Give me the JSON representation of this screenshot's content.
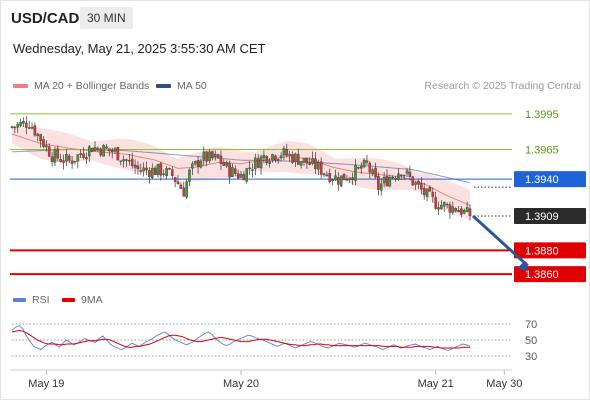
{
  "header": {
    "symbol": "USD/CAD",
    "timeframe": "30 MIN",
    "datetime": "Wednesday, May 21, 2025 3:55:30 AM CET"
  },
  "legend": {
    "ma20_label": "MA 20 + Bollinger Bands",
    "ma50_label": "MA 50",
    "credit": "Research © 2025 Trading Central"
  },
  "rsi_legend": {
    "rsi_label": "RSI",
    "ma9_label": "9MA"
  },
  "colors": {
    "up": "#3b9a3b",
    "down": "#d23a3a",
    "ma20": "#f08080",
    "bands": "#fcdcdc",
    "ma50": "#2b4f8a",
    "resistance": "#8cbf3f",
    "pivot": "#1f63d6",
    "support": "#e00000",
    "last": "#2a2a2a",
    "rsi": "#5b80d6",
    "rsi_ma": "#e00000"
  },
  "chart_data": [
    {
      "type": "candlestick",
      "title": "USD/CAD 30 MIN",
      "ylim": [
        1.385,
        1.401
      ],
      "x_tick_labels": [
        "May 19",
        "May 20",
        "May 21",
        "May 30"
      ],
      "levels": [
        {
          "label": "1.3995",
          "value": 1.3995,
          "kind": "resistance"
        },
        {
          "label": "1.3965",
          "value": 1.3965,
          "kind": "resistance"
        },
        {
          "label": "1.3940",
          "value": 1.394,
          "kind": "pivot"
        },
        {
          "label": "1.3909",
          "value": 1.3909,
          "kind": "last"
        },
        {
          "label": "1.3880",
          "value": 1.388,
          "kind": "support"
        },
        {
          "label": "1.3860",
          "value": 1.386,
          "kind": "support"
        }
      ],
      "anchors": [
        [
          0,
          1.3984
        ],
        [
          6,
          1.3988
        ],
        [
          14,
          1.396
        ],
        [
          20,
          1.3955
        ],
        [
          28,
          1.3967
        ],
        [
          36,
          1.3963
        ],
        [
          44,
          1.3948
        ],
        [
          52,
          1.3947
        ],
        [
          56,
          1.3943
        ],
        [
          60,
          1.393
        ],
        [
          62,
          1.3945
        ],
        [
          66,
          1.3958
        ],
        [
          72,
          1.3957
        ],
        [
          76,
          1.3947
        ],
        [
          80,
          1.3943
        ],
        [
          84,
          1.3952
        ],
        [
          88,
          1.3959
        ],
        [
          94,
          1.3962
        ],
        [
          100,
          1.3957
        ],
        [
          106,
          1.3951
        ],
        [
          110,
          1.3945
        ],
        [
          114,
          1.394
        ],
        [
          120,
          1.3946
        ],
        [
          124,
          1.3952
        ],
        [
          128,
          1.3933
        ],
        [
          132,
          1.3942
        ],
        [
          136,
          1.3948
        ],
        [
          140,
          1.3938
        ],
        [
          144,
          1.3928
        ],
        [
          148,
          1.392
        ],
        [
          152,
          1.3917
        ],
        [
          156,
          1.3915
        ],
        [
          160,
          1.3909
        ]
      ],
      "ma20_anchors": [
        [
          0,
          1.3978
        ],
        [
          10,
          1.397
        ],
        [
          20,
          1.3966
        ],
        [
          30,
          1.3963
        ],
        [
          40,
          1.3961
        ],
        [
          50,
          1.3956
        ],
        [
          58,
          1.3949
        ],
        [
          64,
          1.395
        ],
        [
          72,
          1.3954
        ],
        [
          80,
          1.3953
        ],
        [
          88,
          1.3956
        ],
        [
          96,
          1.3959
        ],
        [
          104,
          1.3957
        ],
        [
          112,
          1.395
        ],
        [
          120,
          1.3946
        ],
        [
          128,
          1.3944
        ],
        [
          136,
          1.3942
        ],
        [
          144,
          1.3936
        ],
        [
          152,
          1.3926
        ],
        [
          160,
          1.3918
        ]
      ],
      "band_width": 0.0011,
      "ma50_anchors": [
        [
          0,
          1.3963
        ],
        [
          20,
          1.3965
        ],
        [
          40,
          1.3964
        ],
        [
          60,
          1.396
        ],
        [
          80,
          1.3956
        ],
        [
          100,
          1.3955
        ],
        [
          120,
          1.3952
        ],
        [
          140,
          1.3948
        ],
        [
          160,
          1.3937
        ]
      ],
      "projection": [
        [
          160,
          1.3909
        ],
        [
          176,
          1.3862
        ]
      ],
      "x_ticks": [
        [
          12,
          "May 19"
        ],
        [
          80,
          "May 20"
        ],
        [
          148,
          "May 21"
        ],
        [
          172,
          "May 30"
        ]
      ],
      "bar_count": 161,
      "x_max": 176
    },
    {
      "type": "line",
      "title": "RSI",
      "ylim": [
        20,
        80
      ],
      "y_ticks": [
        30,
        50,
        70
      ],
      "series": [
        {
          "name": "RSI",
          "values": [
            62,
            66,
            68,
            64,
            55,
            48,
            42,
            40,
            38,
            42,
            45,
            47,
            44,
            41,
            46,
            50,
            47,
            44,
            46,
            49,
            52,
            50,
            48,
            47,
            52,
            55,
            50,
            45,
            42,
            40,
            38,
            40,
            43,
            46,
            44,
            42,
            45,
            48,
            50,
            53,
            56,
            58,
            60,
            57,
            53,
            50,
            48,
            46,
            44,
            46,
            48,
            52,
            55,
            58,
            60,
            57,
            52,
            48,
            45,
            43,
            45,
            48,
            50,
            52,
            54,
            56,
            55,
            53,
            51,
            50,
            48,
            46,
            44,
            42,
            44,
            46,
            44,
            42,
            40,
            42,
            44,
            46,
            48,
            47,
            45,
            43,
            41,
            40,
            42,
            44,
            46,
            45,
            44,
            43,
            41,
            42,
            44,
            46,
            45,
            43,
            42,
            40,
            38,
            40,
            42,
            44,
            42,
            40,
            41,
            43,
            44,
            45,
            43,
            41,
            40,
            38,
            40,
            42,
            40,
            38,
            37,
            39,
            41,
            43,
            45,
            44,
            42
          ]
        },
        {
          "name": "9MA",
          "values": [
            60,
            61,
            62,
            61,
            59,
            56,
            53,
            50,
            48,
            46,
            45,
            45,
            45,
            44,
            44,
            45,
            45,
            45,
            46,
            47,
            48,
            49,
            49,
            49,
            50,
            51,
            51,
            50,
            48,
            46,
            44,
            42,
            41,
            41,
            42,
            42,
            43,
            44,
            45,
            47,
            49,
            51,
            53,
            55,
            56,
            56,
            55,
            54,
            52,
            50,
            49,
            48,
            48,
            49,
            50,
            51,
            52,
            53,
            53,
            52,
            51,
            50,
            49,
            48,
            48,
            48,
            49,
            50,
            51,
            51,
            51,
            50,
            49,
            48,
            47,
            46,
            45,
            44,
            44,
            43,
            43,
            43,
            44,
            44,
            45,
            45,
            44,
            44,
            43,
            43,
            43,
            43,
            43,
            43,
            43,
            43,
            43,
            43,
            43,
            43,
            43,
            43,
            42,
            42,
            42,
            42,
            42,
            41,
            41,
            41,
            41,
            42,
            42,
            42,
            42,
            42,
            41,
            41,
            40,
            40,
            40,
            40,
            40,
            40,
            41,
            41,
            41
          ]
        }
      ]
    }
  ]
}
